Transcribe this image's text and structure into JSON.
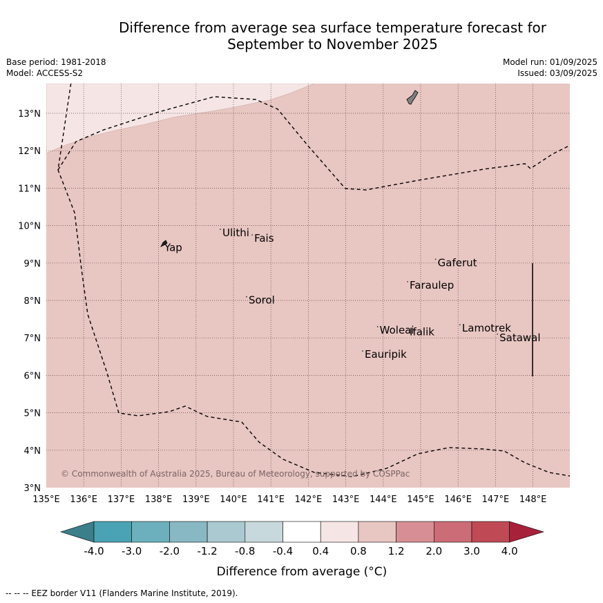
{
  "title_line1": "Difference from average sea surface temperature forecast for",
  "title_line2": "September to November 2025",
  "base_period": "Base period: 1981-2018",
  "model": "Model: ACCESS-S2",
  "model_run": "Model run: 01/09/2025",
  "issued": "Issued: 03/09/2025",
  "copyright": "© Commonwealth of Australia 2025, Bureau of Meteorology, supported by COSPPac",
  "footer_note": "-- -- -- EEZ border V11 (Flanders Marine Institute, 2019).",
  "colorbar_label": "Difference from average (°C)",
  "colorbar_ticks": [
    "-4.0",
    "-3.0",
    "-2.0",
    "-1.2",
    "-0.8",
    "-0.4",
    "0.4",
    "0.8",
    "1.2",
    "2.0",
    "3.0",
    "4.0"
  ],
  "colors": {
    "below": "#3b7f8a",
    "bins": [
      "#4aa3b4",
      "#6cb0bd",
      "#88b8c3",
      "#aac9d0",
      "#c8d9dd",
      "#ffffff",
      "#f5e6e5",
      "#e8c6c2",
      "#d78f95",
      "#cb6c76",
      "#bf4a56"
    ],
    "above": "#a8213a",
    "ocean_main": "#e8c6c2",
    "ocean_light": "#f5e6e5",
    "grid": "#5a4040"
  },
  "map": {
    "lon_range": [
      135,
      149
    ],
    "lat_range": [
      3,
      13.8
    ],
    "lon_ticks": [
      "135°E",
      "136°E",
      "137°E",
      "138°E",
      "139°E",
      "140°E",
      "141°E",
      "142°E",
      "143°E",
      "144°E",
      "145°E",
      "146°E",
      "147°E",
      "148°E"
    ],
    "lat_ticks": [
      "3°N",
      "4°N",
      "5°N",
      "6°N",
      "7°N",
      "8°N",
      "9°N",
      "10°N",
      "11°N",
      "12°N",
      "13°N"
    ],
    "places": [
      {
        "name": "Yap",
        "lon": 138.1,
        "lat": 9.5
      },
      {
        "name": "Ulithi",
        "lon": 139.65,
        "lat": 9.9
      },
      {
        "name": "Fais",
        "lon": 140.5,
        "lat": 9.75
      },
      {
        "name": "Gaferut",
        "lon": 145.4,
        "lat": 9.1
      },
      {
        "name": "Faraulep",
        "lon": 144.65,
        "lat": 8.5
      },
      {
        "name": "Sorol",
        "lon": 140.35,
        "lat": 8.1
      },
      {
        "name": "Lamotrek",
        "lon": 146.05,
        "lat": 7.35
      },
      {
        "name": "Woleai",
        "lon": 143.85,
        "lat": 7.3
      },
      {
        "name": "Ifalik",
        "lon": 144.65,
        "lat": 7.25
      },
      {
        "name": "Satawal",
        "lon": 147.05,
        "lat": 7.1
      },
      {
        "name": "Eauripik",
        "lon": 143.45,
        "lat": 6.65
      }
    ]
  }
}
